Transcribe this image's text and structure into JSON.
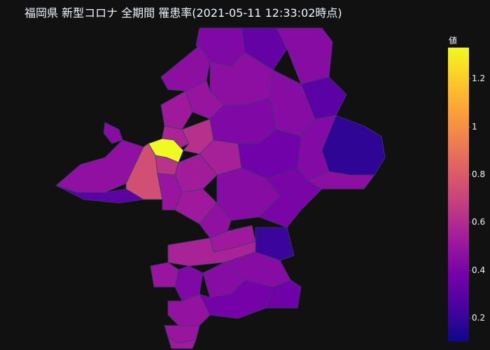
{
  "title": "福岡県 新型コロナ 全期間 罹患率(2021-05-11 12:33:02時点)",
  "colorbar": {
    "title": "値",
    "range": [
      0.1,
      1.33
    ],
    "ticks": [
      {
        "label": "1.2",
        "value": 1.2
      },
      {
        "label": "1",
        "value": 1.0
      },
      {
        "label": "0.8",
        "value": 0.8
      },
      {
        "label": "0.6",
        "value": 0.6
      },
      {
        "label": "0.4",
        "value": 0.4
      },
      {
        "label": "0.2",
        "value": 0.2
      }
    ],
    "colorscale": [
      "#0d0887",
      "#46039f",
      "#7201a8",
      "#9c179e",
      "#bd3786",
      "#d8576b",
      "#ed7953",
      "#fb9f3a",
      "#fdca26",
      "#f0f921"
    ]
  },
  "regions": [
    {
      "id": "kitakyushu-north",
      "value": 0.42
    },
    {
      "id": "kitakyushu-east",
      "value": 0.33
    },
    {
      "id": "kitakyushu-nw",
      "value": 0.46
    },
    {
      "id": "buzen-coast",
      "value": 0.44
    },
    {
      "id": "yukuhashi",
      "value": 0.3
    },
    {
      "id": "buzen-south",
      "value": 0.18
    },
    {
      "id": "chikuho-north",
      "value": 0.46
    },
    {
      "id": "chikuho-central",
      "value": 0.44
    },
    {
      "id": "kurate",
      "value": 0.49
    },
    {
      "id": "munakata",
      "value": 0.52
    },
    {
      "id": "koga",
      "value": 0.57
    },
    {
      "id": "fukuoka-higashi",
      "value": 0.62
    },
    {
      "id": "fukuoka-central",
      "value": 1.33
    },
    {
      "id": "fukuoka-south",
      "value": 0.63
    },
    {
      "id": "fukuoka-nishi",
      "value": 0.75
    },
    {
      "id": "itoshima",
      "value": 0.47
    },
    {
      "id": "kasuya",
      "value": 0.55
    },
    {
      "id": "dazaifu",
      "value": 0.53
    },
    {
      "id": "chikushino",
      "value": 0.5
    },
    {
      "id": "nakagawa",
      "value": 0.52
    },
    {
      "id": "iizuka",
      "value": 0.42
    },
    {
      "id": "kama",
      "value": 0.37
    },
    {
      "id": "tagawa",
      "value": 0.43
    },
    {
      "id": "soeda",
      "value": 0.46
    },
    {
      "id": "asakura",
      "value": 0.44
    },
    {
      "id": "chikuzen",
      "value": 0.4
    },
    {
      "id": "toho",
      "value": 0.21
    },
    {
      "id": "tosu-border",
      "value": 0.47
    },
    {
      "id": "ogori",
      "value": 0.52
    },
    {
      "id": "kurume",
      "value": 0.56
    },
    {
      "id": "ukiha",
      "value": 0.44
    },
    {
      "id": "okawa",
      "value": 0.5
    },
    {
      "id": "yanagawa",
      "value": 0.42
    },
    {
      "id": "yame",
      "value": 0.38
    },
    {
      "id": "yame-east",
      "value": 0.36
    },
    {
      "id": "hirokawa",
      "value": 0.44
    },
    {
      "id": "miyama",
      "value": 0.48
    },
    {
      "id": "omuta",
      "value": 0.5
    },
    {
      "id": "omuta-south",
      "value": 0.52
    },
    {
      "id": "oki",
      "value": 0.3
    },
    {
      "id": "shingu-island",
      "value": 0.45
    }
  ]
}
